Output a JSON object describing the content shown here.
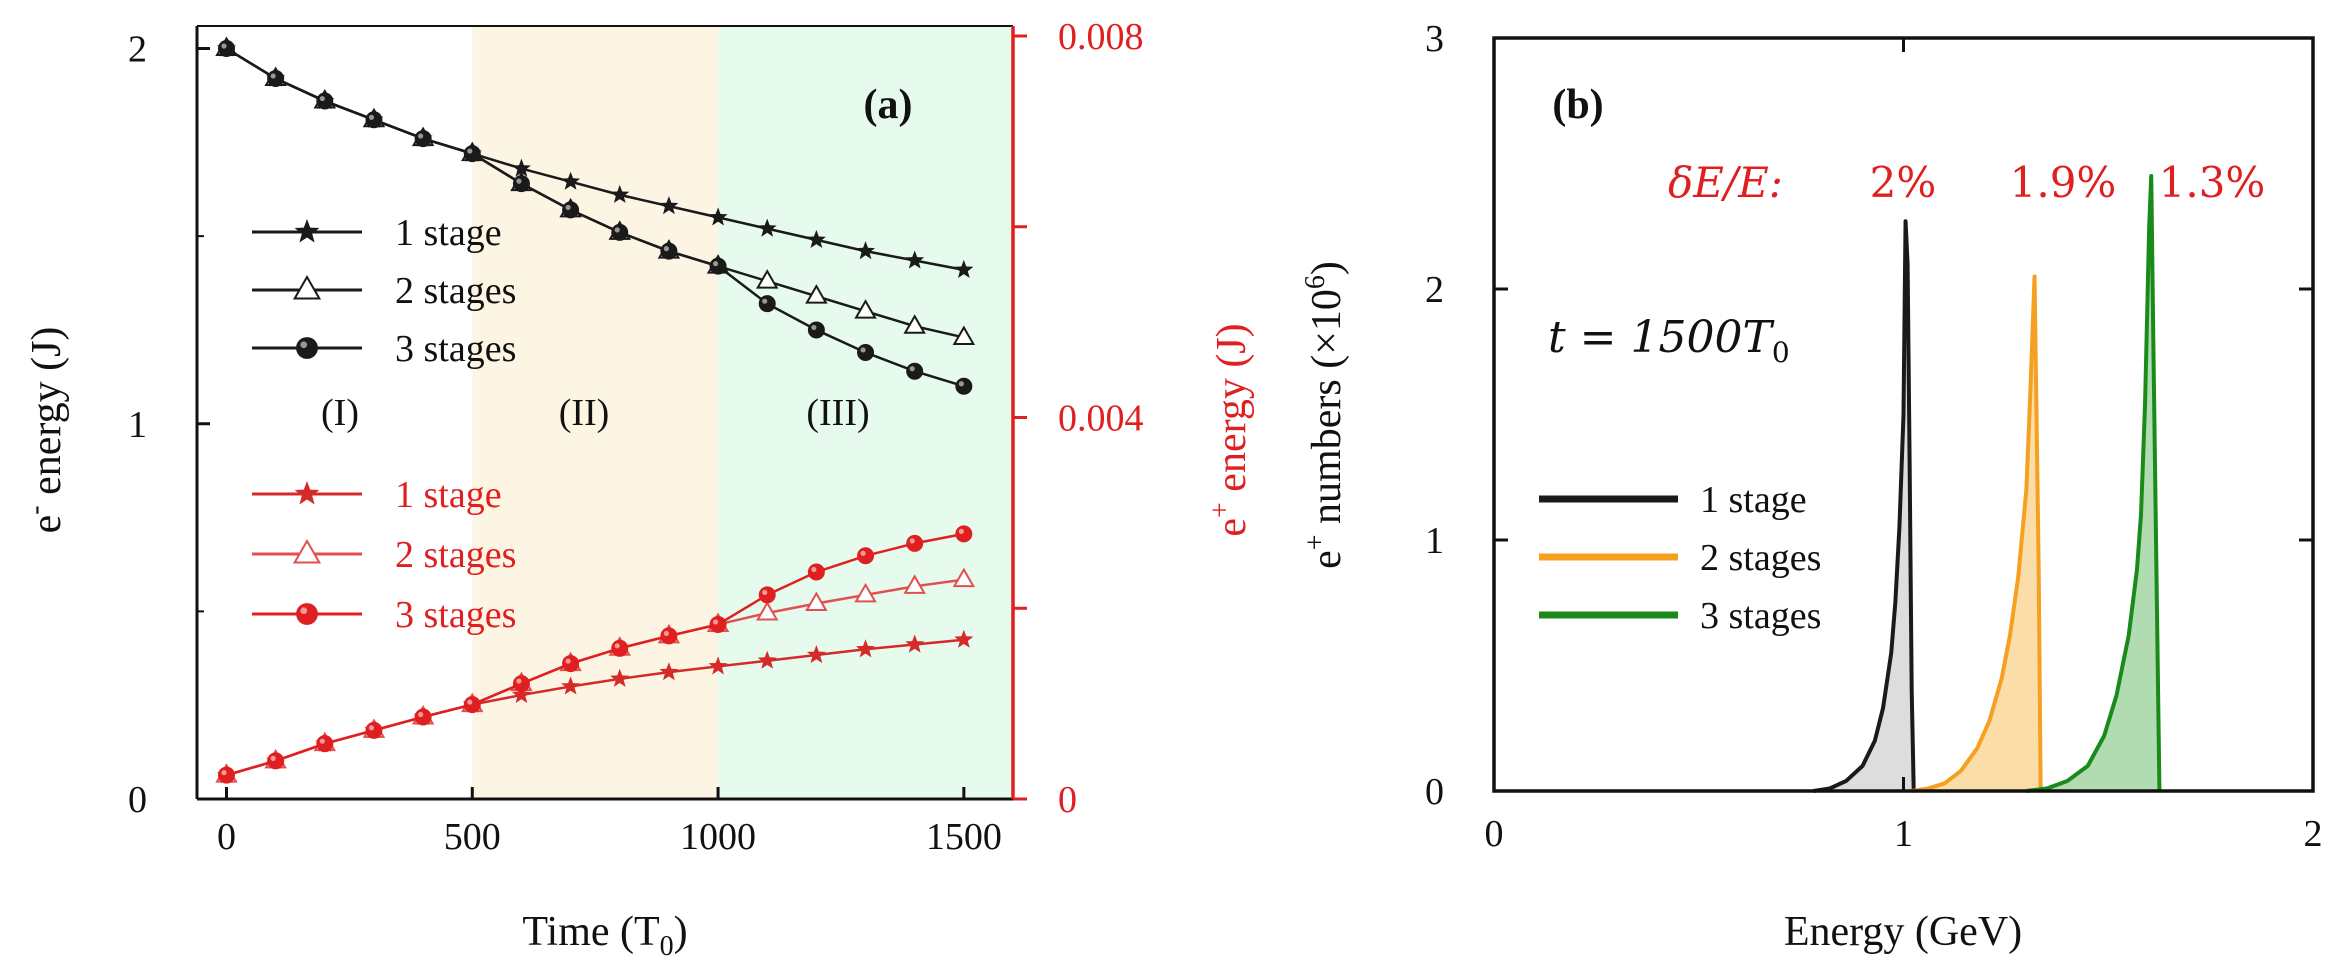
{
  "colors": {
    "black_line": "#1a1a1a",
    "red": "#e02020",
    "red_dark": "#d42a2a",
    "red_light": "#e05050",
    "orange": "#f5a020",
    "green": "#1a8a1a",
    "region1": "#ffffff",
    "region2": "#fdf5e4",
    "region3": "#e6fbee",
    "fill_orange": "#fbd9a0",
    "fill_green": "#a8d8a8",
    "fill_gray": "#d9d9d9"
  },
  "chart_data": [
    {
      "type": "line",
      "panel_label": "(a)",
      "xlabel": "Time (T",
      "xlabel_sub": "0",
      "xlabel_end": ")",
      "ylabel_left": "e",
      "ylabel_left_sup": "-",
      "ylabel_left_rest": " energy (J)",
      "ylabel_right": "e",
      "ylabel_right_sup": "+",
      "ylabel_right_rest": " energy (J)",
      "xlim": [
        -60,
        1600
      ],
      "ylim_left": [
        0,
        2.06
      ],
      "ylim_right": [
        0,
        0.008
      ],
      "xticks": [
        0,
        500,
        1000,
        1500
      ],
      "xtick_labels": [
        "0",
        "500",
        "1000",
        "1500"
      ],
      "yticks_left": [
        0,
        1,
        2
      ],
      "ytick_labels_left": [
        "0",
        "1",
        "2"
      ],
      "yticks_left_minor": [
        0.5,
        1.5
      ],
      "yticks_right": [
        0,
        0.004,
        0.008
      ],
      "ytick_labels_right": [
        "0",
        "0.004",
        "0.008"
      ],
      "yticks_right_minor": [
        0.002,
        0.006
      ],
      "regions": [
        {
          "label": "(I)",
          "x": [
            -60,
            500
          ],
          "color_key": "region1"
        },
        {
          "label": "(II)",
          "x": [
            500,
            1000
          ],
          "color_key": "region2"
        },
        {
          "label": "(III)",
          "x": [
            1000,
            1600
          ],
          "color_key": "region3"
        }
      ],
      "legend_black": [
        "1 stage",
        "2 stages",
        "3 stages"
      ],
      "legend_red": [
        "1 stage",
        "2 stages",
        "3 stages"
      ],
      "series_left": [
        {
          "name": "1 stage",
          "marker": "star",
          "x": [
            0,
            100,
            200,
            300,
            400,
            500,
            600,
            700,
            800,
            900,
            1000,
            1100,
            1200,
            1300,
            1400,
            1500
          ],
          "values": [
            2.0,
            1.92,
            1.86,
            1.81,
            1.76,
            1.72,
            1.68,
            1.645,
            1.61,
            1.58,
            1.55,
            1.52,
            1.49,
            1.46,
            1.435,
            1.41
          ]
        },
        {
          "name": "2 stages",
          "marker": "triangle",
          "x": [
            0,
            100,
            200,
            300,
            400,
            500,
            600,
            700,
            800,
            900,
            1000,
            1100,
            1200,
            1300,
            1400,
            1500
          ],
          "values": [
            2.0,
            1.92,
            1.86,
            1.81,
            1.76,
            1.72,
            1.64,
            1.57,
            1.51,
            1.46,
            1.42,
            1.38,
            1.34,
            1.3,
            1.26,
            1.23
          ]
        },
        {
          "name": "3 stages",
          "marker": "circle",
          "x": [
            0,
            100,
            200,
            300,
            400,
            500,
            600,
            700,
            800,
            900,
            1000,
            1100,
            1200,
            1300,
            1400,
            1500
          ],
          "values": [
            2.0,
            1.92,
            1.86,
            1.81,
            1.76,
            1.72,
            1.64,
            1.57,
            1.51,
            1.46,
            1.42,
            1.32,
            1.25,
            1.19,
            1.14,
            1.1
          ]
        }
      ],
      "series_right": [
        {
          "name": "1 stage",
          "marker": "star",
          "x": [
            0,
            100,
            200,
            300,
            400,
            500,
            600,
            700,
            800,
            900,
            1000,
            1100,
            1200,
            1300,
            1400,
            1500
          ],
          "values": [
            0.00025,
            0.0004,
            0.00058,
            0.00072,
            0.00086,
            0.00099,
            0.00109,
            0.00118,
            0.00126,
            0.00133,
            0.00139,
            0.00145,
            0.00151,
            0.00157,
            0.00162,
            0.00167
          ]
        },
        {
          "name": "2 stages",
          "marker": "triangle",
          "x": [
            0,
            100,
            200,
            300,
            400,
            500,
            600,
            700,
            800,
            900,
            1000,
            1100,
            1200,
            1300,
            1400,
            1500
          ],
          "values": [
            0.00025,
            0.0004,
            0.00058,
            0.00072,
            0.00086,
            0.00099,
            0.00121,
            0.00142,
            0.00158,
            0.00171,
            0.00183,
            0.00195,
            0.00205,
            0.00214,
            0.00223,
            0.0023
          ]
        },
        {
          "name": "3 stages",
          "marker": "circle",
          "x": [
            0,
            100,
            200,
            300,
            400,
            500,
            600,
            700,
            800,
            900,
            1000,
            1100,
            1200,
            1300,
            1400,
            1500
          ],
          "values": [
            0.00025,
            0.0004,
            0.00058,
            0.00072,
            0.00086,
            0.00099,
            0.00121,
            0.00142,
            0.00158,
            0.00171,
            0.00183,
            0.00214,
            0.00238,
            0.00255,
            0.00268,
            0.00278
          ]
        }
      ]
    },
    {
      "type": "area",
      "panel_label": "(b)",
      "xlabel": "Energy (GeV)",
      "ylabel": "e",
      "ylabel_sup": "+",
      "ylabel_rest": " numbers (×10",
      "ylabel_exp": "6",
      "ylabel_end": ")",
      "xlim": [
        0,
        2
      ],
      "ylim": [
        0,
        3
      ],
      "xticks": [
        0,
        1,
        2
      ],
      "xtick_labels": [
        "0",
        "1",
        "2"
      ],
      "yticks": [
        0,
        1,
        2,
        3
      ],
      "ytick_labels": [
        "0",
        "1",
        "2",
        "3"
      ],
      "time_annotation": "t = 1500T",
      "time_annotation_sub": "0",
      "spread_label": "δE/E:",
      "spread_values": [
        "2%",
        "1.9%",
        "1.3%"
      ],
      "legend": [
        "1 stage",
        "2 stages",
        "3 stages"
      ],
      "series": [
        {
          "name": "1 stage",
          "color_key": "black_line",
          "fill_key": "fill_gray",
          "x": [
            0.78,
            0.82,
            0.86,
            0.9,
            0.93,
            0.95,
            0.97,
            0.98,
            0.99,
            1.0,
            1.005,
            1.01,
            1.015,
            1.02,
            1.025
          ],
          "values": [
            0,
            0.01,
            0.04,
            0.1,
            0.2,
            0.33,
            0.55,
            0.75,
            1.05,
            1.5,
            2.27,
            2.1,
            1.3,
            0.4,
            0
          ]
        },
        {
          "name": "2 stages",
          "color_key": "orange",
          "fill_key": "fill_orange",
          "x": [
            1.02,
            1.06,
            1.1,
            1.14,
            1.18,
            1.21,
            1.24,
            1.26,
            1.28,
            1.3,
            1.31,
            1.32,
            1.33,
            1.335
          ],
          "values": [
            0,
            0.01,
            0.03,
            0.08,
            0.17,
            0.28,
            0.45,
            0.62,
            0.85,
            1.2,
            1.6,
            2.05,
            0.9,
            0
          ]
        },
        {
          "name": "3 stages",
          "color_key": "green",
          "fill_key": "fill_green",
          "x": [
            1.3,
            1.35,
            1.4,
            1.45,
            1.49,
            1.52,
            1.55,
            1.57,
            1.58,
            1.59,
            1.6,
            1.605,
            1.61,
            1.62,
            1.625
          ],
          "values": [
            0,
            0.01,
            0.04,
            0.1,
            0.22,
            0.38,
            0.62,
            0.88,
            1.1,
            1.55,
            2.25,
            2.45,
            1.8,
            0.6,
            0
          ]
        }
      ]
    }
  ]
}
